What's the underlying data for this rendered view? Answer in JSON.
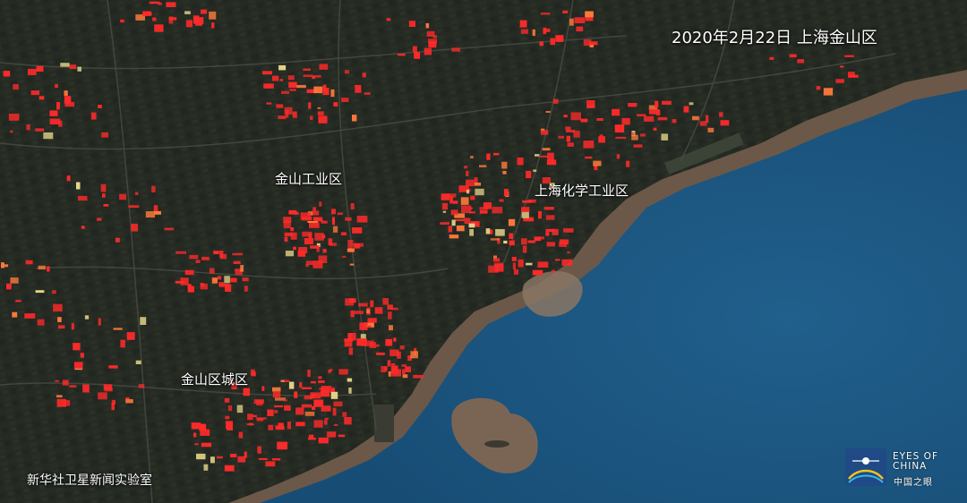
{
  "header": {
    "date_location": "2020年2月22日  上海金山区"
  },
  "places": {
    "jinshan_industrial": "金山工业区",
    "chemical_park": "上海化学工业区",
    "jinshan_city": "金山区城区"
  },
  "credit": "新华社卫星新闻实验室",
  "logo": {
    "text_en_line1": "EYES OF",
    "text_en_line2": "CHINA",
    "text_cn": "中国之眼"
  },
  "colors": {
    "land": "#2a2e27",
    "sea": "#1d5a86",
    "heat": "#ff2a2a",
    "shore": "#6e5a4c"
  }
}
